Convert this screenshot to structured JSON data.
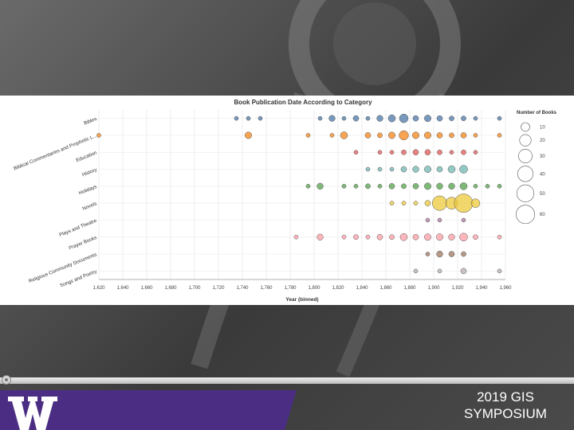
{
  "slide": {
    "symposium_line1": "2019 GIS",
    "symposium_line2": "SYMPOSIUM",
    "logo_color": "#4b2e83"
  },
  "chart_data": {
    "type": "scatter",
    "title": "Book Publication Date According to Category",
    "xlabel": "Year (binned)",
    "ylabel": "",
    "xlim": [
      1620,
      1960
    ],
    "x_ticks": [
      "1,620",
      "1,640",
      "1,660",
      "1,680",
      "1,700",
      "1,720",
      "1,740",
      "1,760",
      "1,780",
      "1,800",
      "1,820",
      "1,840",
      "1,860",
      "1,880",
      "1,900",
      "1,920",
      "1,940",
      "1,960"
    ],
    "categories": [
      "Bibles",
      "Biblical Commentaries and Prophetic L...",
      "Education",
      "History",
      "Holidays",
      "Novels",
      "Plays and Theatre",
      "Prayer Books",
      "Religious Community Documents",
      "Songs and Poetry"
    ],
    "grid": true,
    "legend": {
      "title": "Number of Books",
      "placement": "right",
      "sizes": [
        10,
        20,
        30,
        40,
        50,
        60
      ]
    },
    "colors": {
      "Bibles": "#4c78a8",
      "Biblical Commentaries and Prophetic L...": "#f58518",
      "Education": "#e45756",
      "History": "#72b7b2",
      "Holidays": "#54a24b",
      "Novels": "#eeca3b",
      "Plays and Theatre": "#b279a2",
      "Prayer Books": "#ff9da6",
      "Religious Community Documents": "#9d755d",
      "Songs and Poetry": "#bab0ac"
    },
    "series": [
      {
        "category": "Bibles",
        "points": [
          [
            1735,
            1
          ],
          [
            1745,
            1
          ],
          [
            1755,
            1
          ],
          [
            1805,
            1
          ],
          [
            1815,
            4
          ],
          [
            1825,
            1
          ],
          [
            1835,
            3
          ],
          [
            1845,
            1
          ],
          [
            1855,
            4
          ],
          [
            1865,
            6
          ],
          [
            1875,
            10
          ],
          [
            1885,
            3
          ],
          [
            1895,
            5
          ],
          [
            1905,
            3
          ],
          [
            1915,
            2
          ],
          [
            1925,
            2
          ],
          [
            1935,
            1
          ],
          [
            1955,
            1
          ]
        ]
      },
      {
        "category": "Biblical Commentaries and Prophetic L...",
        "points": [
          [
            1620,
            1
          ],
          [
            1745,
            5
          ],
          [
            1795,
            1
          ],
          [
            1815,
            1
          ],
          [
            1825,
            6
          ],
          [
            1845,
            3
          ],
          [
            1855,
            2
          ],
          [
            1865,
            5
          ],
          [
            1875,
            12
          ],
          [
            1885,
            5
          ],
          [
            1895,
            5
          ],
          [
            1905,
            3
          ],
          [
            1915,
            2
          ],
          [
            1925,
            3
          ],
          [
            1935,
            1
          ],
          [
            1955,
            1
          ]
        ]
      },
      {
        "category": "Education",
        "points": [
          [
            1835,
            1
          ],
          [
            1855,
            1
          ],
          [
            1865,
            1
          ],
          [
            1875,
            2
          ],
          [
            1885,
            3
          ],
          [
            1895,
            3
          ],
          [
            1905,
            2
          ],
          [
            1915,
            1
          ],
          [
            1925,
            2
          ],
          [
            1935,
            1
          ]
        ]
      },
      {
        "category": "History",
        "points": [
          [
            1845,
            1
          ],
          [
            1855,
            1
          ],
          [
            1865,
            1
          ],
          [
            1875,
            3
          ],
          [
            1885,
            4
          ],
          [
            1895,
            5
          ],
          [
            1905,
            3
          ],
          [
            1915,
            6
          ],
          [
            1925,
            8
          ]
        ]
      },
      {
        "category": "Holidays",
        "points": [
          [
            1795,
            1
          ],
          [
            1805,
            4
          ],
          [
            1825,
            1
          ],
          [
            1835,
            1
          ],
          [
            1845,
            2
          ],
          [
            1855,
            1
          ],
          [
            1865,
            3
          ],
          [
            1875,
            2
          ],
          [
            1885,
            3
          ],
          [
            1895,
            5
          ],
          [
            1905,
            4
          ],
          [
            1915,
            4
          ],
          [
            1925,
            6
          ],
          [
            1935,
            1
          ],
          [
            1945,
            1
          ],
          [
            1955,
            1
          ]
        ]
      },
      {
        "category": "Novels",
        "points": [
          [
            1865,
            1
          ],
          [
            1875,
            1
          ],
          [
            1885,
            1
          ],
          [
            1895,
            3
          ],
          [
            1905,
            35
          ],
          [
            1915,
            22
          ],
          [
            1925,
            60
          ],
          [
            1935,
            10
          ]
        ]
      },
      {
        "category": "Plays and Theatre",
        "points": [
          [
            1895,
            1
          ],
          [
            1905,
            1
          ],
          [
            1925,
            1
          ]
        ]
      },
      {
        "category": "Prayer Books",
        "points": [
          [
            1785,
            1
          ],
          [
            1805,
            4
          ],
          [
            1825,
            1
          ],
          [
            1835,
            2
          ],
          [
            1845,
            1
          ],
          [
            1855,
            3
          ],
          [
            1865,
            2
          ],
          [
            1875,
            6
          ],
          [
            1885,
            3
          ],
          [
            1895,
            5
          ],
          [
            1905,
            5
          ],
          [
            1915,
            4
          ],
          [
            1925,
            8
          ],
          [
            1935,
            2
          ],
          [
            1955,
            1
          ]
        ]
      },
      {
        "category": "Religious Community Documents",
        "points": [
          [
            1895,
            1
          ],
          [
            1905,
            4
          ],
          [
            1915,
            3
          ],
          [
            1925,
            2
          ]
        ]
      },
      {
        "category": "Songs and Poetry",
        "points": [
          [
            1885,
            1
          ],
          [
            1905,
            1
          ],
          [
            1925,
            3
          ],
          [
            1955,
            1
          ]
        ]
      }
    ]
  }
}
